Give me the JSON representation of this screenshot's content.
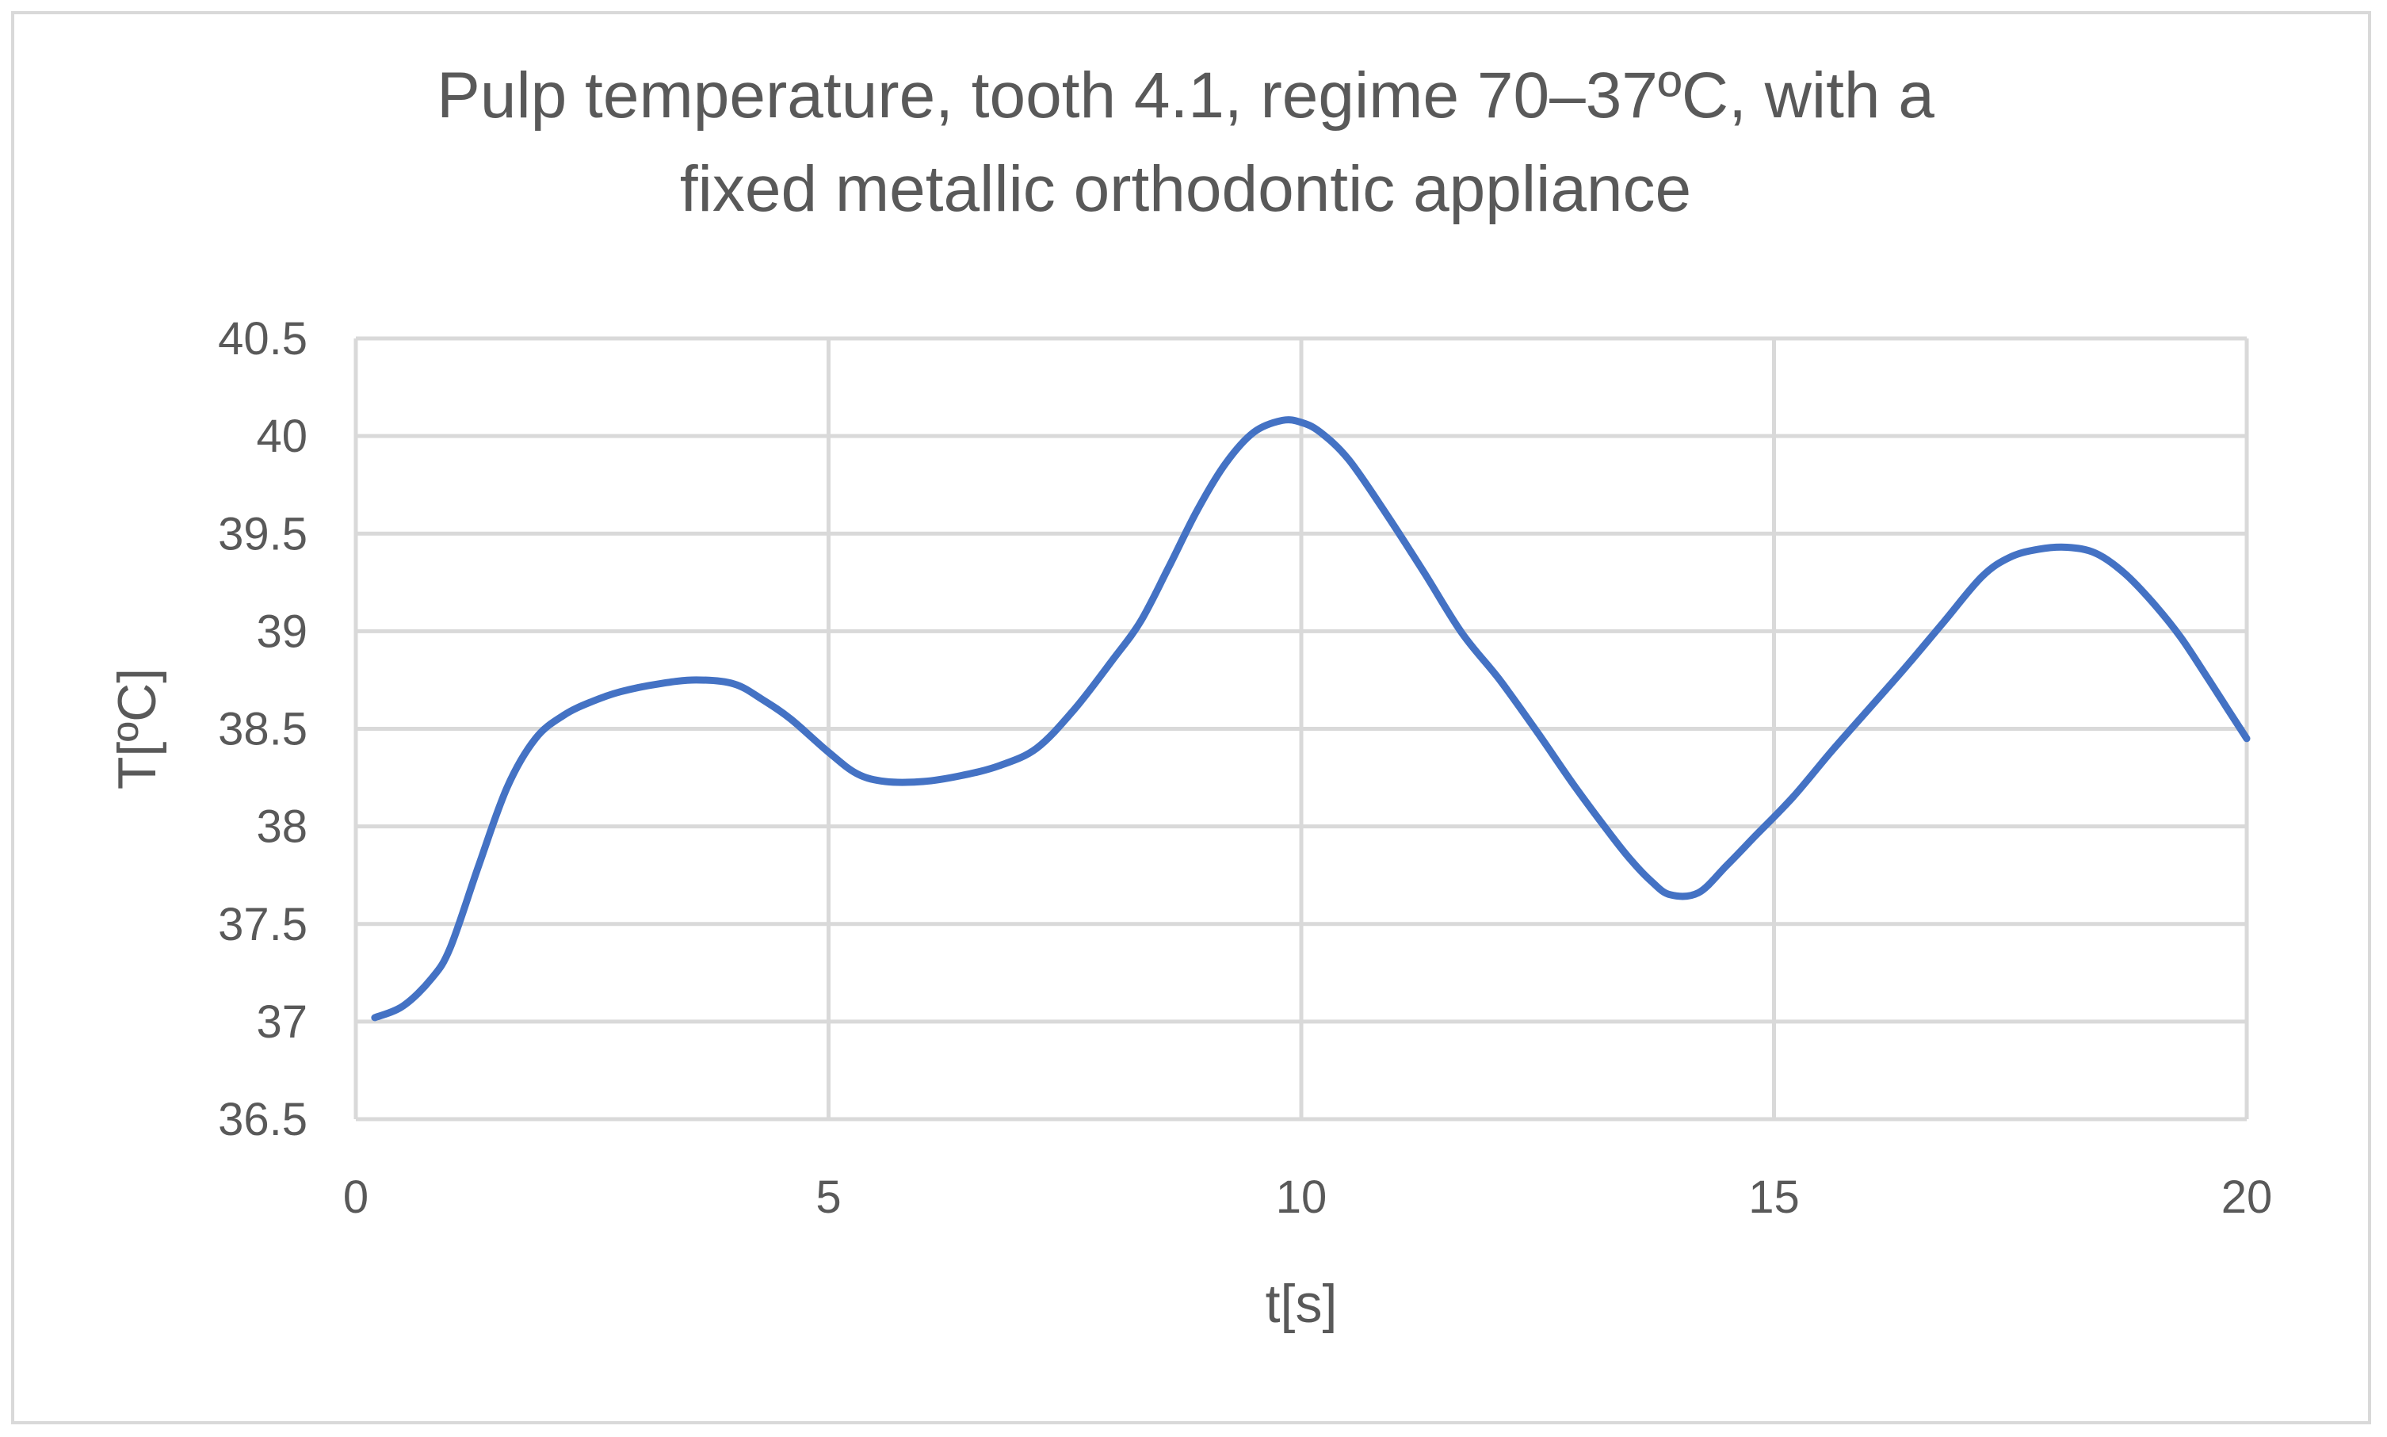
{
  "chart_data": {
    "type": "line",
    "title_lines": [
      "Pulp temperature, tooth 4.1, regime 70–37ºC, with a",
      "fixed metallic orthodontic appliance"
    ],
    "xlabel": "t[s]",
    "ylabel": "T[ºC]",
    "xlim": [
      0,
      20
    ],
    "ylim": [
      36.5,
      40.5
    ],
    "x_ticks": [
      0,
      5,
      10,
      15,
      20
    ],
    "x_tick_labels": [
      "0",
      "5",
      "10",
      "15",
      "20"
    ],
    "y_ticks": [
      36.5,
      37,
      37.5,
      38,
      38.5,
      39,
      39.5,
      40,
      40.5
    ],
    "y_tick_labels": [
      "36.5",
      "37",
      "37.5",
      "38",
      "38.5",
      "39",
      "39.5",
      "40",
      "40.5"
    ],
    "grid": true,
    "legend": false,
    "colors": {
      "line": "#4472c4",
      "grid": "#d9d9d9",
      "text": "#595959",
      "border": "#d9d9d9"
    },
    "series": [
      {
        "x": [
          0.2,
          0.5,
          0.8,
          1.0,
          1.3,
          1.6,
          1.9,
          2.2,
          2.5,
          2.8,
          3.2,
          3.6,
          4.0,
          4.3,
          4.6,
          5.0,
          5.3,
          5.6,
          6.0,
          6.4,
          6.8,
          7.2,
          7.6,
          8.0,
          8.3,
          8.6,
          8.9,
          9.2,
          9.5,
          9.8,
          10.0,
          10.2,
          10.5,
          10.9,
          11.3,
          11.7,
          12.1,
          12.5,
          12.9,
          13.3,
          13.5,
          13.7,
          13.9,
          14.2,
          14.5,
          14.8,
          15.2,
          15.6,
          16.0,
          16.4,
          16.8,
          17.2,
          17.5,
          17.8,
          18.1,
          18.4,
          18.7,
          19.0,
          19.3,
          19.6,
          19.8,
          20.0
        ],
        "y": [
          37.02,
          37.08,
          37.22,
          37.38,
          37.8,
          38.2,
          38.45,
          38.57,
          38.64,
          38.69,
          38.73,
          38.75,
          38.73,
          38.65,
          38.55,
          38.38,
          38.27,
          38.23,
          38.23,
          38.26,
          38.31,
          38.4,
          38.6,
          38.85,
          39.05,
          39.33,
          39.62,
          39.86,
          40.02,
          40.08,
          40.07,
          40.02,
          39.88,
          39.6,
          39.3,
          38.99,
          38.75,
          38.48,
          38.2,
          37.94,
          37.82,
          37.72,
          37.65,
          37.66,
          37.8,
          37.95,
          38.15,
          38.38,
          38.6,
          38.82,
          39.05,
          39.28,
          39.38,
          39.42,
          39.43,
          39.4,
          39.3,
          39.15,
          38.97,
          38.75,
          38.6,
          38.45
        ]
      }
    ]
  }
}
